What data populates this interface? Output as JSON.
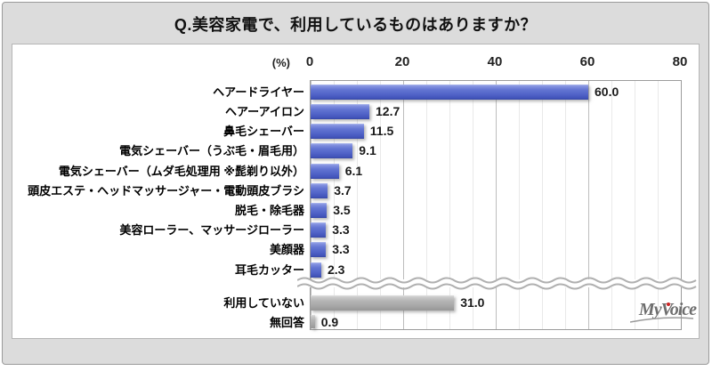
{
  "title": "Q.美容家電で、利用しているものはありますか？",
  "chart_data": {
    "type": "bar",
    "orientation": "horizontal",
    "unit_label": "(%)",
    "xlim": [
      0,
      80
    ],
    "x_ticks": [
      "0",
      "20",
      "40",
      "60",
      "80"
    ],
    "grid": {
      "minor_step": 5,
      "major_step": 20,
      "grid_on": true
    },
    "break_after_index": 9,
    "items": [
      {
        "label": "ヘアードライヤー",
        "value": 60.0,
        "display": "60.0",
        "color": "blue"
      },
      {
        "label": "ヘアーアイロン",
        "value": 12.7,
        "display": "12.7",
        "color": "blue"
      },
      {
        "label": "鼻毛シェーバー",
        "value": 11.5,
        "display": "11.5",
        "color": "blue"
      },
      {
        "label": "電気シェーバー（うぶ毛・眉毛用）",
        "value": 9.1,
        "display": "9.1",
        "color": "blue"
      },
      {
        "label": "電気シェーバー（ムダ毛処理用 ※髭剃り以外）",
        "value": 6.1,
        "display": "6.1",
        "color": "blue"
      },
      {
        "label": "頭皮エステ・ヘッドマッサージャー・電動頭皮ブラシ",
        "value": 3.7,
        "display": "3.7",
        "color": "blue"
      },
      {
        "label": "脱毛・除毛器",
        "value": 3.5,
        "display": "3.5",
        "color": "blue"
      },
      {
        "label": "美容ローラー、マッサージローラー",
        "value": 3.3,
        "display": "3.3",
        "color": "blue"
      },
      {
        "label": "美顔器",
        "value": 3.3,
        "display": "3.3",
        "color": "blue"
      },
      {
        "label": "耳毛カッター",
        "value": 2.3,
        "display": "2.3",
        "color": "blue"
      },
      {
        "label": "利用していない",
        "value": 31.0,
        "display": "31.0",
        "color": "gray"
      },
      {
        "label": "無回答",
        "value": 0.9,
        "display": "0.9",
        "color": "gray"
      }
    ]
  },
  "logo": {
    "text": "MyVoice"
  },
  "colors": {
    "frame_bg": "#dcdcdc",
    "panel_bg": "#ffffff",
    "bar_blue": "#5b6cc9",
    "bar_gray": "#ababab",
    "grid_major": "#bdbdbd",
    "grid_minor": "#e9e9e9"
  }
}
